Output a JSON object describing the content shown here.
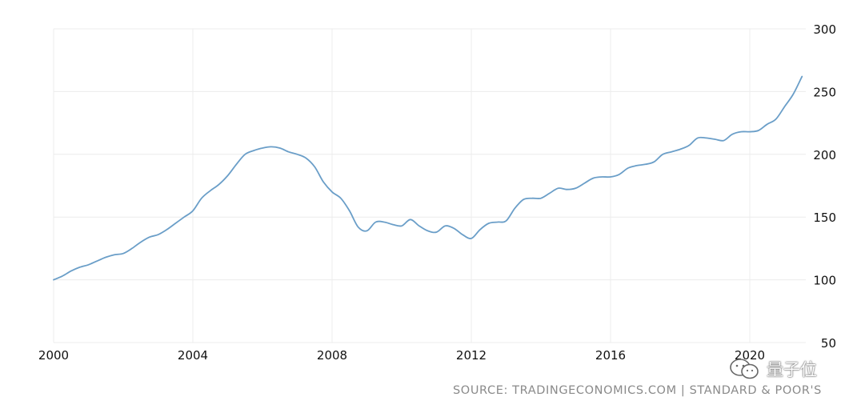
{
  "chart_data": {
    "type": "line",
    "title": "",
    "xlabel": "",
    "ylabel": "",
    "xlim": [
      2000,
      2021.6
    ],
    "ylim": [
      50,
      300
    ],
    "x_ticks": [
      2000,
      2004,
      2008,
      2012,
      2016,
      2020
    ],
    "x_tick_labels": [
      "2000",
      "2004",
      "2008",
      "2012",
      "2016",
      "2020"
    ],
    "y_ticks": [
      50,
      100,
      150,
      200,
      250,
      300
    ],
    "y_tick_labels": [
      "50",
      "100",
      "150",
      "200",
      "250",
      "300"
    ],
    "y_axis_side": "right",
    "grid": true,
    "line_color": "#6a9ec8",
    "series": [
      {
        "x": [
          2000.0,
          2000.25,
          2000.5,
          2000.75,
          2001.0,
          2001.25,
          2001.5,
          2001.75,
          2002.0,
          2002.25,
          2002.5,
          2002.75,
          2003.0,
          2003.25,
          2003.5,
          2003.75,
          2004.0,
          2004.25,
          2004.5,
          2004.75,
          2005.0,
          2005.25,
          2005.5,
          2005.75,
          2006.0,
          2006.25,
          2006.5,
          2006.75,
          2007.0,
          2007.25,
          2007.5,
          2007.75,
          2008.0,
          2008.25,
          2008.5,
          2008.75,
          2009.0,
          2009.25,
          2009.5,
          2009.75,
          2010.0,
          2010.25,
          2010.5,
          2010.75,
          2011.0,
          2011.25,
          2011.5,
          2011.75,
          2012.0,
          2012.25,
          2012.5,
          2012.75,
          2013.0,
          2013.25,
          2013.5,
          2013.75,
          2014.0,
          2014.25,
          2014.5,
          2014.75,
          2015.0,
          2015.25,
          2015.5,
          2015.75,
          2016.0,
          2016.25,
          2016.5,
          2016.75,
          2017.0,
          2017.25,
          2017.5,
          2017.75,
          2018.0,
          2018.25,
          2018.5,
          2018.75,
          2019.0,
          2019.25,
          2019.5,
          2019.75,
          2020.0,
          2020.25,
          2020.5,
          2020.75,
          2021.0,
          2021.25,
          2021.5
        ],
        "values": [
          100,
          103,
          107,
          110,
          112,
          115,
          118,
          120,
          121,
          125,
          130,
          134,
          136,
          140,
          145,
          150,
          155,
          165,
          171,
          176,
          183,
          192,
          200,
          203,
          205,
          206,
          205,
          202,
          200,
          197,
          190,
          178,
          170,
          165,
          155,
          142,
          139,
          146,
          146,
          144,
          143,
          148,
          143,
          139,
          138,
          143,
          141,
          136,
          133,
          140,
          145,
          146,
          147,
          157,
          164,
          165,
          165,
          169,
          173,
          172,
          173,
          177,
          181,
          182,
          182,
          184,
          189,
          191,
          192,
          194,
          200,
          202,
          204,
          207,
          213,
          213,
          212,
          211,
          216,
          218,
          218,
          219,
          224,
          228,
          238,
          248,
          262
        ]
      }
    ],
    "source_note": "SOURCE: TRADINGECONOMICS.COM | STANDARD & POOR'S"
  },
  "watermark": {
    "icon": "wechat-icon",
    "text": "量子位"
  }
}
